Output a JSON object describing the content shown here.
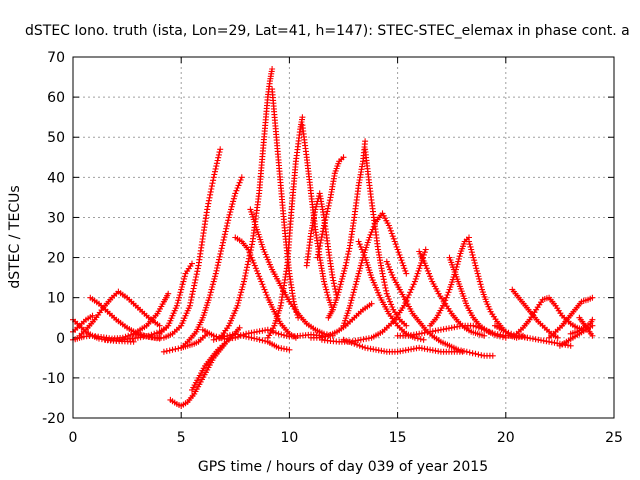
{
  "chart_data": {
    "type": "scatter",
    "title": "dSTEC Iono. truth (ista, Lon=29, Lat=41, h=147): STEC-STEC_elemax in phase cont. a",
    "xlabel": "GPS time / hours of day 039 of year 2015",
    "ylabel": "dSTEC  / TECUs",
    "xlim": [
      0,
      25
    ],
    "ylim": [
      -20,
      70
    ],
    "xticks": [
      0,
      5,
      10,
      15,
      20,
      25
    ],
    "yticks": [
      -20,
      -10,
      0,
      10,
      20,
      30,
      40,
      50,
      60,
      70
    ],
    "grid": true,
    "marker": "plus",
    "color": "#ff0000",
    "series": [
      {
        "x": [
          0.0,
          0.3,
          0.6,
          0.9
        ],
        "y": [
          1.5,
          3.0,
          4.5,
          5.5
        ]
      },
      {
        "x": [
          0.0,
          0.3,
          0.6,
          0.9,
          1.2,
          1.6,
          2.0,
          2.4,
          2.8
        ],
        "y": [
          4.5,
          3.0,
          1.5,
          0.5,
          -0.2,
          -0.6,
          -0.8,
          -0.9,
          -1.0
        ]
      },
      {
        "x": [
          0.0,
          0.2,
          0.5,
          0.9,
          1.3,
          1.8,
          2.3,
          2.8,
          3.4,
          3.9,
          4.2,
          4.4
        ],
        "y": [
          -0.5,
          -0.2,
          0.3,
          0.5,
          0.2,
          -0.2,
          0.0,
          1.0,
          3.0,
          6.0,
          9.0,
          11.0
        ]
      },
      {
        "x": [
          0.8,
          1.2,
          1.6,
          2.0,
          2.5,
          3.0,
          3.5,
          4.0
        ],
        "y": [
          10.0,
          8.5,
          6.5,
          4.5,
          2.5,
          1.0,
          0.2,
          -0.2
        ]
      },
      {
        "x": [
          0.3,
          0.6,
          1.0,
          1.4,
          1.8,
          2.1,
          2.5,
          3.0,
          3.5,
          4.0
        ],
        "y": [
          0.5,
          2.0,
          4.5,
          7.5,
          10.0,
          11.5,
          10.0,
          7.5,
          5.0,
          3.0
        ]
      },
      {
        "x": [
          1.5,
          2.0,
          2.5,
          3.0,
          3.5,
          4.0,
          4.3
        ],
        "y": [
          -0.5,
          -0.6,
          -0.3,
          0.0,
          0.5,
          1.5,
          2.5
        ]
      },
      {
        "x": [
          2.8,
          3.3,
          3.8,
          4.2,
          4.6,
          5.0,
          5.4,
          5.8,
          6.2,
          6.5,
          6.8
        ],
        "y": [
          1.0,
          0.5,
          0.0,
          0.0,
          1.0,
          3.0,
          8.0,
          18.0,
          32.0,
          40.0,
          47.0
        ]
      },
      {
        "x": [
          4.0,
          4.4,
          4.8,
          5.0,
          5.2,
          5.5
        ],
        "y": [
          1.0,
          3.0,
          8.0,
          12.0,
          16.0,
          18.5
        ]
      },
      {
        "x": [
          4.2,
          4.6,
          5.0,
          5.3,
          5.6,
          5.8,
          6.0,
          6.2
        ],
        "y": [
          -3.5,
          -3.0,
          -2.5,
          -2.0,
          -1.5,
          -1.0,
          0.0,
          1.0
        ]
      },
      {
        "x": [
          4.5,
          4.8,
          5.0,
          5.3,
          5.6,
          5.9,
          6.2,
          6.5,
          6.8,
          7.1,
          7.4,
          7.7
        ],
        "y": [
          -15.5,
          -16.5,
          -17.0,
          -16.0,
          -14.0,
          -11.0,
          -8.0,
          -5.0,
          -3.0,
          -1.0,
          0.5,
          2.5
        ]
      },
      {
        "x": [
          5.5,
          5.8,
          6.1,
          6.4,
          6.7,
          7.0
        ],
        "y": [
          -13.0,
          -10.0,
          -7.0,
          -5.0,
          -3.0,
          -1.5
        ]
      },
      {
        "x": [
          5.0,
          5.3,
          5.7,
          6.0,
          6.3,
          6.6,
          6.9,
          7.2,
          7.5,
          7.8
        ],
        "y": [
          -2.5,
          -1.0,
          1.5,
          5.0,
          10.0,
          16.0,
          23.0,
          30.0,
          36.0,
          40.0
        ]
      },
      {
        "x": [
          6.0,
          6.5,
          7.0,
          7.5,
          8.0,
          8.5,
          9.0,
          9.5,
          10.0,
          10.5,
          11.0,
          11.5
        ],
        "y": [
          2.0,
          0.5,
          -0.3,
          0.0,
          1.0,
          1.5,
          2.0,
          1.0,
          0.3,
          0.5,
          0.8,
          0.5
        ]
      },
      {
        "x": [
          6.5,
          7.0,
          7.5,
          8.0,
          8.5,
          9.0,
          9.5,
          10.0
        ],
        "y": [
          -0.5,
          0.3,
          1.0,
          0.3,
          -0.3,
          -1.0,
          -2.5,
          -3.0
        ]
      },
      {
        "x": [
          6.8,
          7.2,
          7.6,
          7.9,
          8.3,
          8.6,
          8.8,
          9.0,
          9.1,
          9.2
        ],
        "y": [
          0.0,
          3.0,
          8.0,
          14.0,
          24.0,
          36.0,
          48.0,
          60.0,
          64.0,
          67.0
        ]
      },
      {
        "x": [
          9.2,
          9.4,
          9.6,
          9.8,
          10.0,
          10.2,
          10.4
        ],
        "y": [
          62.0,
          50.0,
          38.0,
          26.0,
          16.0,
          9.0,
          5.0
        ]
      },
      {
        "x": [
          7.5,
          7.8,
          8.1,
          8.4,
          8.7,
          9.0,
          9.3,
          9.6,
          10.0,
          10.3
        ],
        "y": [
          25.0,
          24.0,
          22.0,
          18.0,
          14.0,
          10.0,
          6.5,
          3.5,
          1.0,
          0.0
        ]
      },
      {
        "x": [
          8.2,
          8.5,
          8.8,
          9.2,
          9.6,
          10.0,
          10.4,
          10.8,
          11.2,
          11.6,
          12.0
        ],
        "y": [
          32.0,
          27.0,
          22.0,
          17.0,
          13.0,
          9.0,
          6.0,
          3.5,
          2.0,
          1.0,
          0.5
        ]
      },
      {
        "x": [
          9.0,
          9.3,
          9.6,
          9.9,
          10.1,
          10.3,
          10.5,
          10.6
        ],
        "y": [
          0.0,
          3.0,
          8.0,
          18.0,
          32.0,
          44.0,
          52.0,
          55.0
        ]
      },
      {
        "x": [
          10.6,
          10.8,
          11.0,
          11.2,
          11.4,
          11.6,
          11.8,
          12.0
        ],
        "y": [
          53.0,
          45.0,
          36.0,
          27.0,
          20.0,
          14.0,
          10.0,
          7.0
        ]
      },
      {
        "x": [
          10.8,
          11.0,
          11.2,
          11.4,
          11.6,
          11.8,
          12.0,
          12.2
        ],
        "y": [
          18.0,
          26.0,
          32.0,
          36.0,
          30.0,
          22.0,
          15.0,
          10.0
        ]
      },
      {
        "x": [
          11.3,
          11.6,
          11.9,
          12.1,
          12.3,
          12.5
        ],
        "y": [
          20.0,
          28.0,
          35.0,
          41.0,
          44.0,
          45.0
        ]
      },
      {
        "x": [
          11.0,
          11.4,
          11.8,
          12.2,
          12.6,
          13.0,
          13.4,
          13.8
        ],
        "y": [
          0.0,
          0.0,
          0.5,
          1.5,
          3.0,
          5.0,
          7.0,
          8.5
        ]
      },
      {
        "x": [
          11.5,
          11.9,
          12.3,
          12.8,
          13.3,
          13.8,
          14.3,
          14.8,
          15.3,
          15.8,
          16.3
        ],
        "y": [
          -0.5,
          -0.8,
          -1.0,
          -1.0,
          -0.5,
          0.0,
          1.5,
          4.0,
          8.0,
          14.0,
          22.0
        ]
      },
      {
        "x": [
          11.8,
          12.0,
          12.2,
          12.4,
          12.6,
          12.8,
          13.0,
          13.2,
          13.4,
          13.5
        ],
        "y": [
          5.0,
          7.0,
          10.0,
          14.0,
          18.0,
          23.0,
          30.0,
          38.0,
          44.0,
          49.0
        ]
      },
      {
        "x": [
          13.5,
          13.7,
          13.9,
          14.1,
          14.3,
          14.5,
          14.8,
          15.1,
          15.4
        ],
        "y": [
          47.0,
          38.0,
          30.0,
          22.0,
          16.0,
          11.0,
          7.0,
          4.5,
          3.0
        ]
      },
      {
        "x": [
          12.5,
          12.8,
          13.1,
          13.4,
          13.7,
          14.0,
          14.3,
          14.6,
          15.0,
          15.4
        ],
        "y": [
          3.0,
          8.0,
          14.0,
          20.0,
          25.0,
          29.0,
          31.0,
          28.0,
          22.0,
          16.0
        ]
      },
      {
        "x": [
          13.2,
          13.5,
          13.8,
          14.2,
          14.6,
          15.0,
          15.4,
          15.8,
          16.2
        ],
        "y": [
          24.0,
          20.0,
          15.0,
          10.0,
          6.0,
          3.0,
          1.0,
          0.0,
          -0.5
        ]
      },
      {
        "x": [
          12.5,
          13.0,
          13.5,
          14.0,
          14.5,
          15.0,
          15.5,
          16.0,
          16.5,
          17.0,
          17.5,
          18.0
        ],
        "y": [
          -0.5,
          -1.5,
          -2.5,
          -3.0,
          -3.5,
          -3.5,
          -3.0,
          -2.5,
          -3.0,
          -3.5,
          -3.5,
          -3.5
        ]
      },
      {
        "x": [
          14.5,
          14.8,
          15.1,
          15.4,
          15.7,
          16.0,
          16.3,
          16.6,
          17.0,
          17.4,
          17.8,
          18.2,
          18.6,
          19.0,
          19.4
        ],
        "y": [
          19.0,
          15.0,
          12.0,
          9.0,
          6.0,
          4.0,
          2.0,
          0.5,
          -1.0,
          -2.0,
          -3.0,
          -3.5,
          -4.0,
          -4.5,
          -4.5
        ]
      },
      {
        "x": [
          15.0,
          15.5,
          16.0,
          16.5,
          17.0,
          17.5,
          18.0,
          18.5,
          19.0,
          19.5,
          20.0,
          20.5,
          21.0
        ],
        "y": [
          0.5,
          0.5,
          1.0,
          1.5,
          2.0,
          2.5,
          3.0,
          3.0,
          2.0,
          1.0,
          0.5,
          0.5,
          0.0
        ]
      },
      {
        "x": [
          16.0,
          16.3,
          16.6,
          16.9,
          17.2,
          17.5,
          17.8,
          18.1,
          18.4,
          18.7,
          19.0
        ],
        "y": [
          21.5,
          18.0,
          14.0,
          11.0,
          8.5,
          6.0,
          4.0,
          2.5,
          1.5,
          1.0,
          0.5
        ]
      },
      {
        "x": [
          17.4,
          17.6,
          17.8,
          18.0,
          18.2,
          18.5,
          18.8,
          19.2,
          19.6,
          20.0
        ],
        "y": [
          20.0,
          17.0,
          14.0,
          11.0,
          8.0,
          5.0,
          3.0,
          1.5,
          0.5,
          0.0
        ]
      },
      {
        "x": [
          16.5,
          16.8,
          17.1,
          17.4,
          17.7,
          17.9,
          18.1,
          18.3
        ],
        "y": [
          3.0,
          5.0,
          8.0,
          12.0,
          17.0,
          21.0,
          24.0,
          25.0
        ]
      },
      {
        "x": [
          18.3,
          18.5,
          18.7,
          18.9,
          19.1,
          19.3,
          19.6,
          19.9,
          20.2,
          20.5,
          20.8
        ],
        "y": [
          24.0,
          20.0,
          16.0,
          12.0,
          9.0,
          6.5,
          4.0,
          2.0,
          0.5,
          0.0,
          0.5
        ]
      },
      {
        "x": [
          19.5,
          20.0,
          20.5,
          21.0,
          21.5,
          22.0,
          22.5,
          23.0
        ],
        "y": [
          3.0,
          1.5,
          0.5,
          0.0,
          -0.5,
          -1.0,
          -1.5,
          -2.0
        ]
      },
      {
        "x": [
          20.3,
          20.6,
          20.9,
          21.2,
          21.5,
          21.8,
          22.1,
          22.4
        ],
        "y": [
          12.0,
          10.0,
          8.0,
          6.0,
          4.0,
          2.5,
          1.0,
          0.0
        ]
      },
      {
        "x": [
          20.5,
          20.8,
          21.1,
          21.4,
          21.7,
          22.0,
          22.3,
          22.6,
          23.0,
          23.3,
          23.6
        ],
        "y": [
          1.0,
          2.5,
          4.5,
          7.0,
          9.5,
          10.0,
          8.0,
          5.5,
          3.5,
          2.5,
          2.0
        ]
      },
      {
        "x": [
          22.0,
          22.3,
          22.6,
          22.9,
          23.2,
          23.5,
          23.8,
          24.0
        ],
        "y": [
          0.0,
          1.5,
          3.0,
          5.0,
          7.0,
          9.0,
          9.5,
          10.0
        ]
      },
      {
        "x": [
          22.5,
          22.8,
          23.1,
          23.4,
          23.7,
          24.0
        ],
        "y": [
          -2.0,
          -1.0,
          0.0,
          1.0,
          2.0,
          3.0
        ]
      },
      {
        "x": [
          23.0,
          23.3,
          23.6,
          23.9,
          24.0
        ],
        "y": [
          1.0,
          1.5,
          2.5,
          3.5,
          4.5
        ]
      },
      {
        "x": [
          23.4,
          23.6,
          23.8,
          24.0
        ],
        "y": [
          5.0,
          3.5,
          2.0,
          0.5
        ]
      }
    ]
  }
}
